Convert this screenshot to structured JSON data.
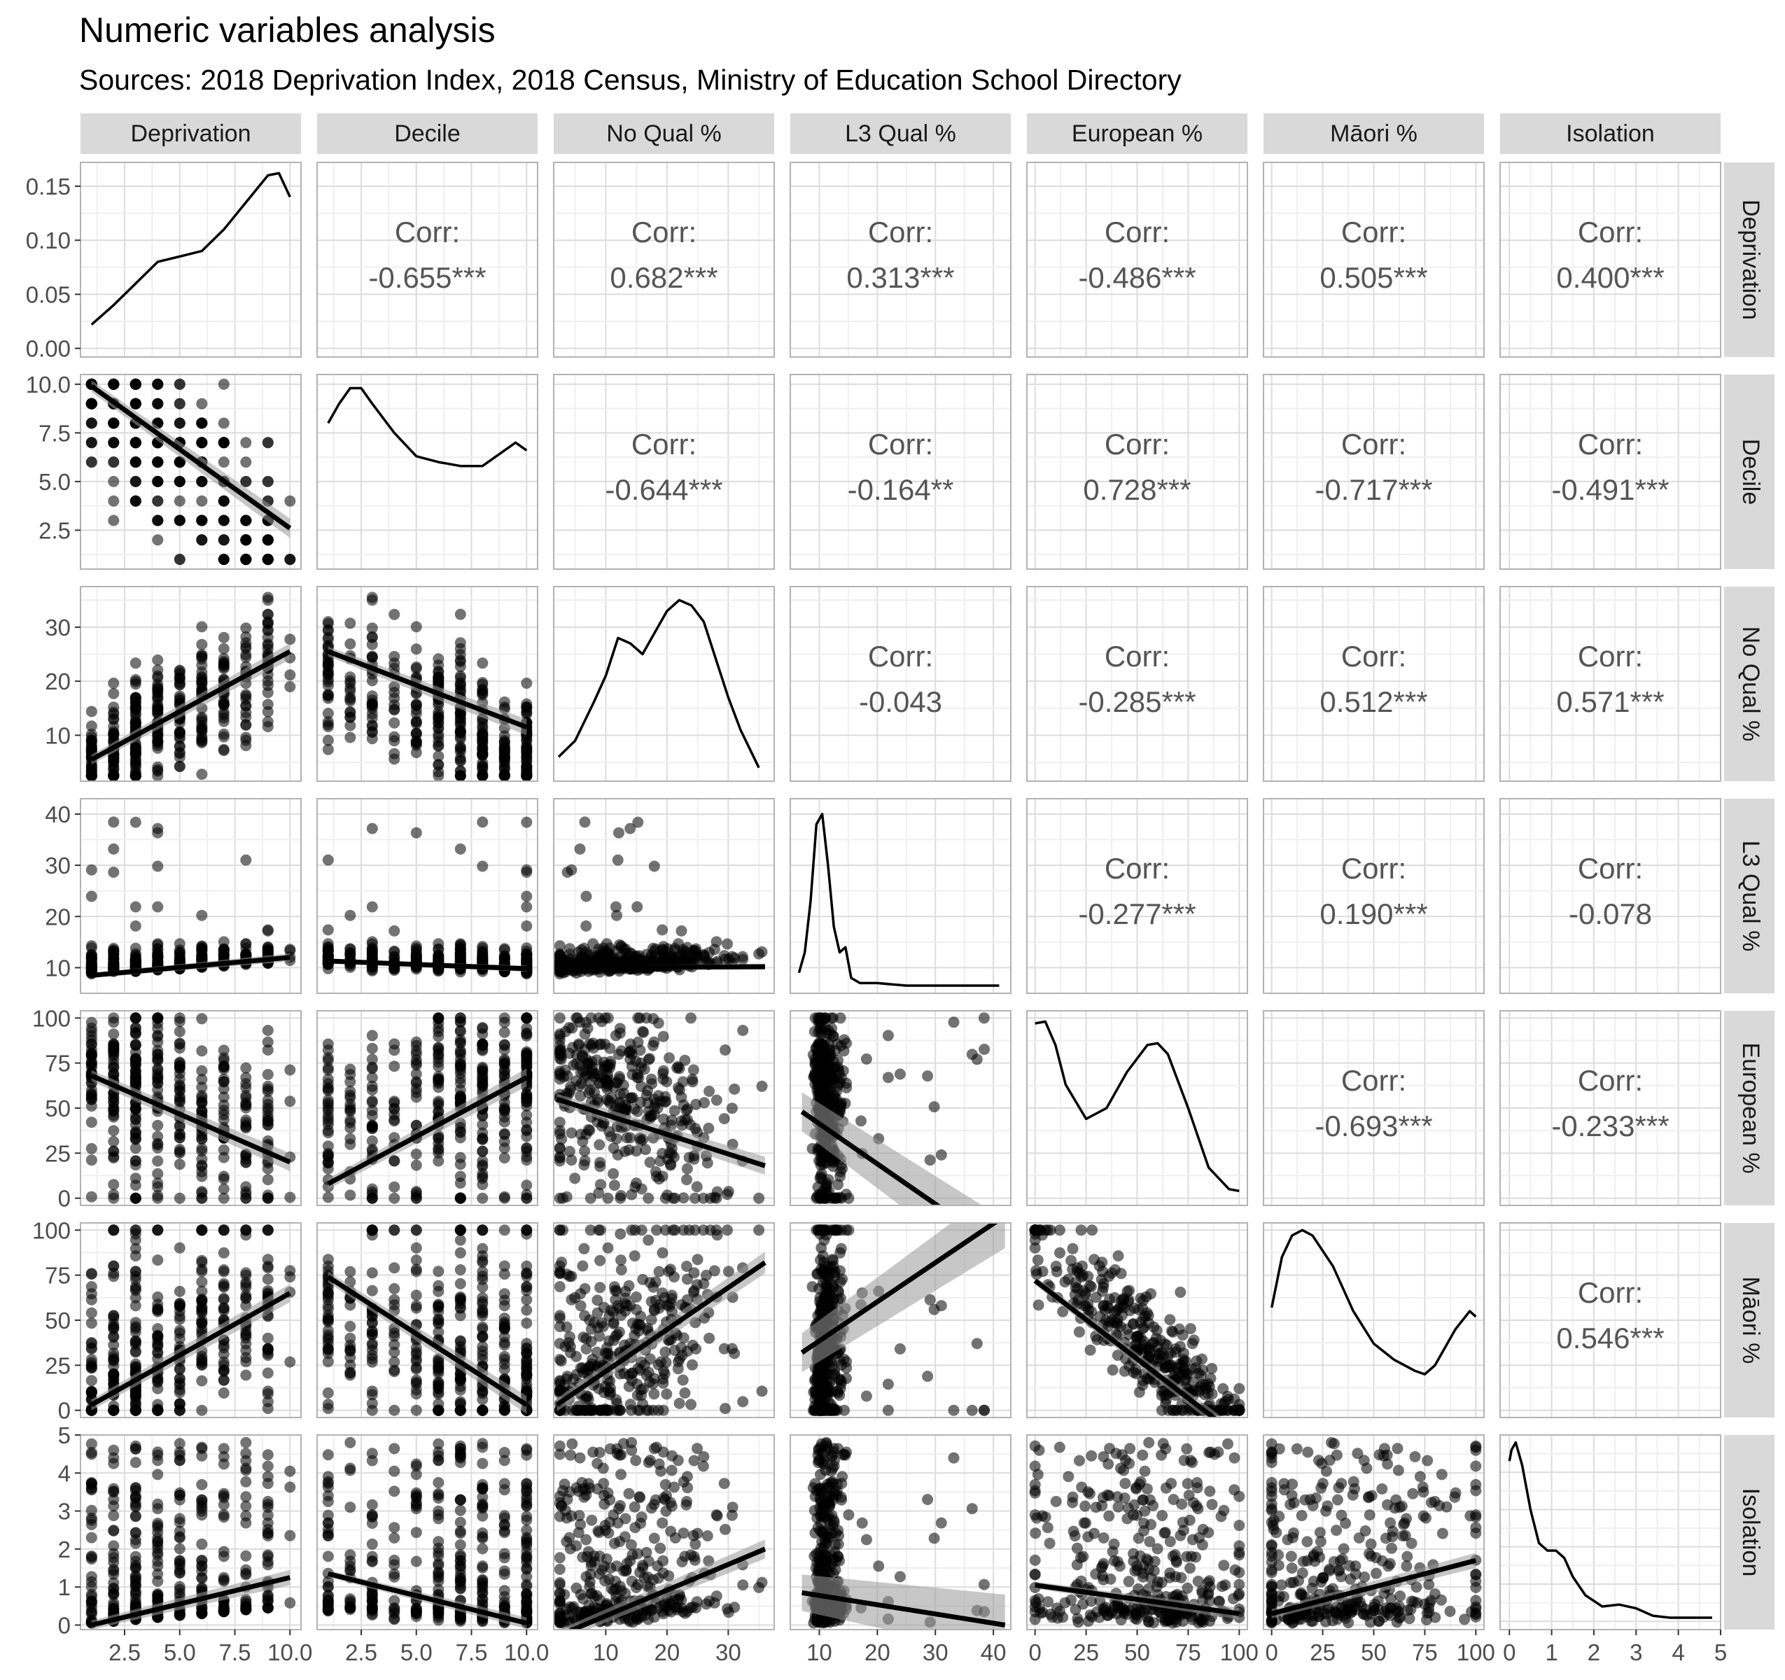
{
  "title": "Numeric variables analysis",
  "subtitle": "Sources: 2018 Deprivation Index, 2018 Census, Ministry of Education School Directory",
  "colors": {
    "strip_bg": "#d9d9d9",
    "panel_border": "#b3b3b3",
    "grid_major": "#dcdcdc",
    "grid_minor": "#efefef",
    "ink": "#000000",
    "corr_text": "#555555",
    "band": "#999999"
  },
  "chart_data": {
    "type": "scatter",
    "variables": [
      "Deprivation",
      "Decile",
      "No Qual %",
      "L3 Qual %",
      "European %",
      "Māori %",
      "Isolation"
    ],
    "x_axes": [
      {
        "lim": [
          0.5,
          10.5
        ],
        "ticks": [
          2.5,
          5.0,
          7.5,
          10.0
        ],
        "labels": [
          "2.5",
          "5.0",
          "7.5",
          "10.0"
        ]
      },
      {
        "lim": [
          0.5,
          10.5
        ],
        "ticks": [
          2.5,
          5.0,
          7.5,
          10.0
        ],
        "labels": [
          "2.5",
          "5.0",
          "7.5",
          "10.0"
        ]
      },
      {
        "lim": [
          1.5,
          37.5
        ],
        "ticks": [
          10,
          20,
          30
        ],
        "labels": [
          "10",
          "20",
          "30"
        ]
      },
      {
        "lim": [
          5,
          43
        ],
        "ticks": [
          10,
          20,
          30,
          40
        ],
        "labels": [
          "10",
          "20",
          "30",
          "40"
        ]
      },
      {
        "lim": [
          -4,
          104
        ],
        "ticks": [
          0,
          25,
          50,
          75,
          100
        ],
        "labels": [
          "0",
          "25",
          "50",
          "75",
          "100"
        ]
      },
      {
        "lim": [
          -4,
          104
        ],
        "ticks": [
          0,
          25,
          50,
          75,
          100
        ],
        "labels": [
          "0",
          "25",
          "50",
          "75",
          "100"
        ]
      },
      {
        "lim": [
          -0.22,
          5.0
        ],
        "ticks": [
          0,
          1,
          2,
          3,
          4,
          5
        ],
        "labels": [
          "0",
          "1",
          "2",
          "3",
          "4",
          "5"
        ]
      }
    ],
    "y_axes": [
      {
        "lim": [
          -0.008,
          0.172
        ],
        "ticks": [
          0.0,
          0.05,
          0.1,
          0.15
        ],
        "labels": [
          "0.00",
          "0.05",
          "0.10",
          "0.15"
        ]
      },
      {
        "lim": [
          0.5,
          10.5
        ],
        "ticks": [
          2.5,
          5.0,
          7.5,
          10.0
        ],
        "labels": [
          "2.5",
          "5.0",
          "7.5",
          "10.0"
        ]
      },
      {
        "lim": [
          1.5,
          37.5
        ],
        "ticks": [
          10,
          20,
          30
        ],
        "labels": [
          "10",
          "20",
          "30"
        ]
      },
      {
        "lim": [
          5,
          43
        ],
        "ticks": [
          10,
          20,
          30,
          40
        ],
        "labels": [
          "10",
          "20",
          "30",
          "40"
        ]
      },
      {
        "lim": [
          -4,
          104
        ],
        "ticks": [
          0,
          25,
          50,
          75,
          100
        ],
        "labels": [
          "0",
          "25",
          "50",
          "75",
          "100"
        ]
      },
      {
        "lim": [
          -4,
          104
        ],
        "ticks": [
          0,
          25,
          50,
          75,
          100
        ],
        "labels": [
          "0",
          "25",
          "50",
          "75",
          "100"
        ]
      },
      {
        "lim": [
          -0.12,
          5.0
        ],
        "ticks": [
          0,
          1,
          2,
          3,
          4,
          5
        ],
        "labels": [
          "0",
          "1",
          "2",
          "3",
          "4",
          "5"
        ]
      }
    ],
    "correlations": [
      {
        "row": 0,
        "col": 1,
        "label": "Corr:",
        "value": "-0.655***"
      },
      {
        "row": 0,
        "col": 2,
        "label": "Corr:",
        "value": "0.682***"
      },
      {
        "row": 0,
        "col": 3,
        "label": "Corr:",
        "value": "0.313***"
      },
      {
        "row": 0,
        "col": 4,
        "label": "Corr:",
        "value": "-0.486***"
      },
      {
        "row": 0,
        "col": 5,
        "label": "Corr:",
        "value": "0.505***"
      },
      {
        "row": 0,
        "col": 6,
        "label": "Corr:",
        "value": "0.400***"
      },
      {
        "row": 1,
        "col": 2,
        "label": "Corr:",
        "value": "-0.644***"
      },
      {
        "row": 1,
        "col": 3,
        "label": "Corr:",
        "value": "-0.164**"
      },
      {
        "row": 1,
        "col": 4,
        "label": "Corr:",
        "value": "0.728***"
      },
      {
        "row": 1,
        "col": 5,
        "label": "Corr:",
        "value": "-0.717***"
      },
      {
        "row": 1,
        "col": 6,
        "label": "Corr:",
        "value": "-0.491***"
      },
      {
        "row": 2,
        "col": 3,
        "label": "Corr:",
        "value": "-0.043"
      },
      {
        "row": 2,
        "col": 4,
        "label": "Corr:",
        "value": "-0.285***"
      },
      {
        "row": 2,
        "col": 5,
        "label": "Corr:",
        "value": "0.512***"
      },
      {
        "row": 2,
        "col": 6,
        "label": "Corr:",
        "value": "0.571***"
      },
      {
        "row": 3,
        "col": 4,
        "label": "Corr:",
        "value": "-0.277***"
      },
      {
        "row": 3,
        "col": 5,
        "label": "Corr:",
        "value": "0.190***"
      },
      {
        "row": 3,
        "col": 6,
        "label": "Corr:",
        "value": "-0.078"
      },
      {
        "row": 4,
        "col": 5,
        "label": "Corr:",
        "value": "-0.693***"
      },
      {
        "row": 4,
        "col": 6,
        "label": "Corr:",
        "value": "-0.233***"
      },
      {
        "row": 5,
        "col": 6,
        "label": "Corr:",
        "value": "0.546***"
      }
    ],
    "densities": [
      {
        "var": "Deprivation",
        "x": [
          1,
          2,
          3,
          4,
          5,
          6,
          7,
          8,
          9,
          9.5,
          10
        ],
        "y": [
          0.022,
          0.04,
          0.06,
          0.08,
          0.085,
          0.09,
          0.11,
          0.135,
          0.16,
          0.162,
          0.14
        ]
      },
      {
        "var": "Decile",
        "x": [
          1,
          1.5,
          2,
          2.5,
          3,
          4,
          5,
          6,
          7,
          8,
          9,
          9.5,
          10
        ],
        "y": [
          8.0,
          9.0,
          9.8,
          9.8,
          9.0,
          7.5,
          6.3,
          6.0,
          5.8,
          5.8,
          6.6,
          7.0,
          6.6
        ]
      },
      {
        "var": "No Qual %",
        "x": [
          2.3,
          5,
          8,
          10,
          12,
          14,
          16,
          18,
          20,
          22,
          24,
          26,
          28,
          30,
          32,
          35
        ],
        "y": [
          6,
          9,
          16,
          21,
          28,
          27,
          25,
          29,
          33,
          35,
          34,
          31,
          24,
          17,
          11,
          4
        ]
      },
      {
        "var": "L3 Qual %",
        "x": [
          6.5,
          7.5,
          8.5,
          9.5,
          10.5,
          11.5,
          12.5,
          13.5,
          14.5,
          15.5,
          17,
          20,
          25,
          30,
          35,
          41
        ],
        "y": [
          9,
          13,
          23,
          38,
          40,
          30,
          18,
          13,
          14,
          8,
          7,
          7,
          6.5,
          6.5,
          6.5,
          6.5
        ]
      },
      {
        "var": "European %",
        "x": [
          0,
          5,
          10,
          15,
          25,
          35,
          45,
          55,
          60,
          65,
          75,
          85,
          95,
          100
        ],
        "y": [
          97,
          98,
          85,
          63,
          44,
          50,
          70,
          85,
          86,
          80,
          50,
          17,
          5,
          4
        ]
      },
      {
        "var": "Māori %",
        "x": [
          0,
          5,
          10,
          15,
          20,
          30,
          40,
          50,
          60,
          70,
          75,
          80,
          90,
          97,
          100
        ],
        "y": [
          57,
          85,
          97,
          100,
          97,
          80,
          55,
          37,
          28,
          22,
          20,
          25,
          45,
          55,
          52
        ]
      },
      {
        "var": "Isolation",
        "x": [
          0,
          0.05,
          0.15,
          0.3,
          0.5,
          0.7,
          0.9,
          1.1,
          1.3,
          1.5,
          1.8,
          2.2,
          2.6,
          3.0,
          3.4,
          3.8,
          4.2,
          4.8
        ],
        "y": [
          4.3,
          4.6,
          4.8,
          4.2,
          3.0,
          2.1,
          1.9,
          1.9,
          1.7,
          1.2,
          0.7,
          0.4,
          0.45,
          0.35,
          0.15,
          0.1,
          0.1,
          0.1
        ]
      }
    ],
    "fit_lines": [
      {
        "row": 1,
        "col": 0,
        "from": [
          1,
          9.9
        ],
        "to": [
          10,
          2.6
        ],
        "band": 0.5
      },
      {
        "row": 2,
        "col": 0,
        "from": [
          1,
          5.5
        ],
        "to": [
          10,
          25.5
        ],
        "band": 1.5
      },
      {
        "row": 2,
        "col": 1,
        "from": [
          1,
          25.5
        ],
        "to": [
          10,
          11.5
        ],
        "band": 1.5
      },
      {
        "row": 3,
        "col": 0,
        "from": [
          1,
          8.5
        ],
        "to": [
          10,
          12.0
        ],
        "band": 0.8
      },
      {
        "row": 3,
        "col": 1,
        "from": [
          1,
          11.3
        ],
        "to": [
          10,
          9.8
        ],
        "band": 0.6
      },
      {
        "row": 3,
        "col": 2,
        "from": [
          2,
          10.0
        ],
        "to": [
          36,
          10.2
        ],
        "band": 0.6
      },
      {
        "row": 4,
        "col": 0,
        "from": [
          1,
          68
        ],
        "to": [
          10,
          20
        ],
        "band": 5
      },
      {
        "row": 4,
        "col": 1,
        "from": [
          1,
          8
        ],
        "to": [
          10,
          67
        ],
        "band": 5
      },
      {
        "row": 4,
        "col": 2,
        "from": [
          2,
          55
        ],
        "to": [
          36,
          18
        ],
        "band": 5
      },
      {
        "row": 4,
        "col": 3,
        "from": [
          7,
          48
        ],
        "to": [
          42,
          -30
        ],
        "band": 18
      },
      {
        "row": 5,
        "col": 0,
        "from": [
          1,
          3
        ],
        "to": [
          10,
          65
        ],
        "band": 5
      },
      {
        "row": 5,
        "col": 1,
        "from": [
          1,
          74
        ],
        "to": [
          10,
          3
        ],
        "band": 5
      },
      {
        "row": 5,
        "col": 2,
        "from": [
          2,
          3
        ],
        "to": [
          36,
          82
        ],
        "band": 6
      },
      {
        "row": 5,
        "col": 3,
        "from": [
          7,
          32
        ],
        "to": [
          42,
          108
        ],
        "band": 18
      },
      {
        "row": 5,
        "col": 4,
        "from": [
          0,
          72
        ],
        "to": [
          100,
          -15
        ],
        "band": 4
      },
      {
        "row": 6,
        "col": 0,
        "from": [
          1,
          0.0
        ],
        "to": [
          10,
          1.25
        ],
        "band": 0.2
      },
      {
        "row": 6,
        "col": 1,
        "from": [
          1,
          1.35
        ],
        "to": [
          10,
          0.05
        ],
        "band": 0.15
      },
      {
        "row": 6,
        "col": 2,
        "from": [
          2,
          -0.3
        ],
        "to": [
          36,
          2.0
        ],
        "band": 0.25
      },
      {
        "row": 6,
        "col": 3,
        "from": [
          7,
          0.85
        ],
        "to": [
          42,
          0.0
        ],
        "band": 0.8
      },
      {
        "row": 6,
        "col": 4,
        "from": [
          0,
          1.05
        ],
        "to": [
          100,
          0.3
        ],
        "band": 0.15
      },
      {
        "row": 6,
        "col": 5,
        "from": [
          0,
          0.3
        ],
        "to": [
          100,
          1.7
        ],
        "band": 0.2
      }
    ],
    "point_counts": 360
  }
}
